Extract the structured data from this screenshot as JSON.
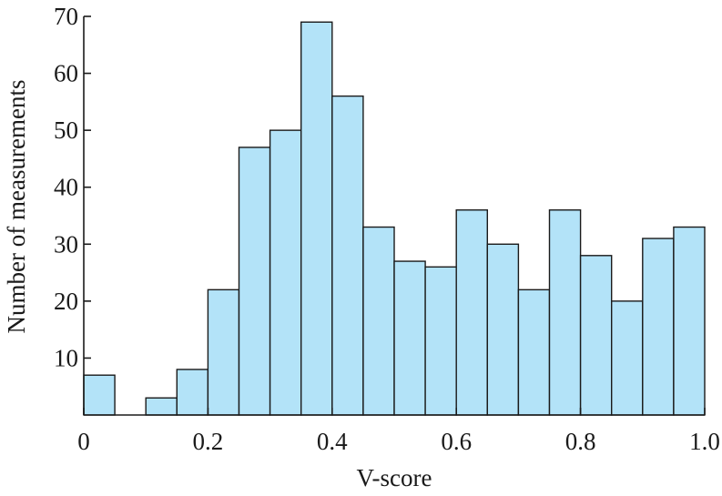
{
  "chart_data": {
    "type": "bar",
    "title": "",
    "xlabel": "V-score",
    "ylabel": "Number of measurements",
    "bin_width": 0.05,
    "bin_starts": [
      0,
      0.05,
      0.1,
      0.15,
      0.2,
      0.25,
      0.3,
      0.35,
      0.4,
      0.45,
      0.5,
      0.55,
      0.6,
      0.65,
      0.7,
      0.75,
      0.8,
      0.85,
      0.9,
      0.95
    ],
    "values": [
      7,
      0,
      3,
      8,
      22,
      47,
      50,
      69,
      56,
      33,
      27,
      26,
      36,
      30,
      22,
      36,
      28,
      20,
      31,
      33
    ],
    "xlim": [
      0,
      1.0
    ],
    "ylim": [
      0,
      70
    ],
    "xticks": [
      0,
      0.2,
      0.4,
      0.6,
      0.8,
      1.0
    ],
    "xtick_labels": [
      "0",
      "0.2",
      "0.4",
      "0.6",
      "0.8",
      "1.0"
    ],
    "yticks": [
      10,
      20,
      30,
      40,
      50,
      60,
      70
    ],
    "ytick_labels": [
      "10",
      "20",
      "30",
      "40",
      "50",
      "60",
      "70"
    ],
    "grid": false,
    "colors": {
      "bar_fill": "#b3e3f8",
      "bar_edge": "#1a1a1a"
    }
  }
}
